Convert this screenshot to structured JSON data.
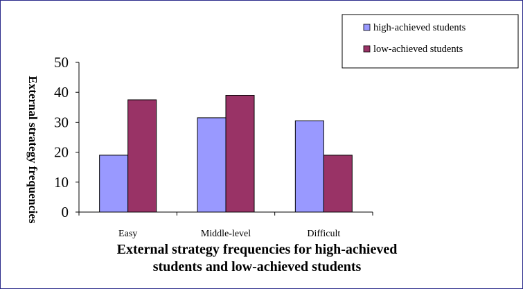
{
  "chart_data": {
    "type": "bar",
    "categories": [
      "Easy",
      "Middle-level",
      "Difficult"
    ],
    "series": [
      {
        "name": "high-achieved students",
        "values": [
          19,
          31.5,
          30.5
        ],
        "color": "#9999ff"
      },
      {
        "name": "low-achieved students",
        "values": [
          37.5,
          39,
          19
        ],
        "color": "#993366"
      }
    ],
    "ylim": [
      0,
      50
    ],
    "yticks": [
      0,
      10,
      20,
      30,
      40,
      50
    ],
    "ylabel": "External strategy frequencies",
    "xlabel_lines": [
      "External strategy frequencies for high-achieved",
      "students and low-achieved students"
    ],
    "grid": false,
    "legend_position": "top-right"
  }
}
